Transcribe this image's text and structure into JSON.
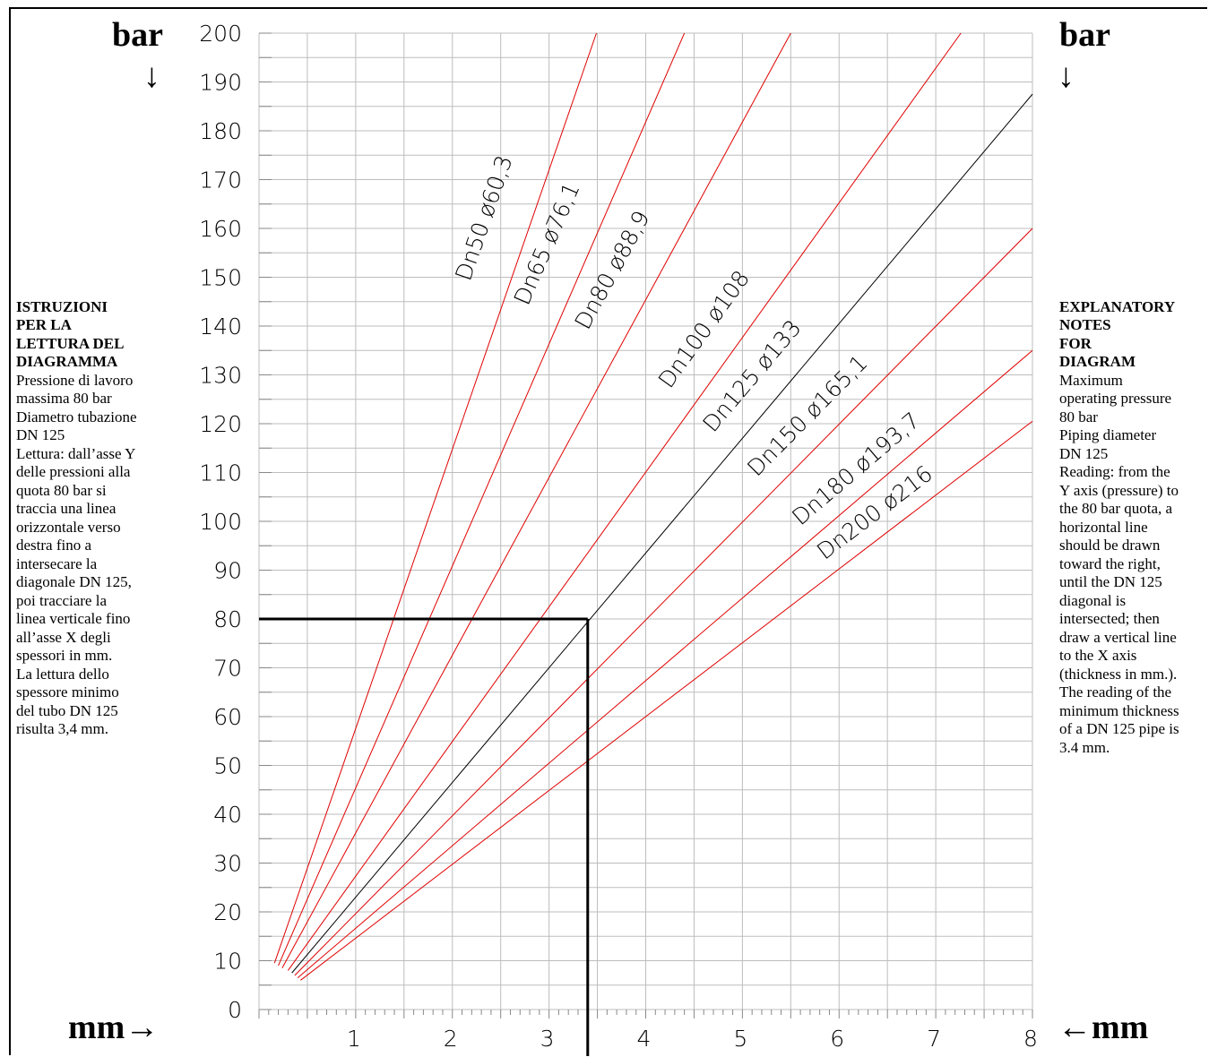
{
  "units": {
    "bar_left": "bar",
    "bar_right": "bar",
    "down_arrow_left": "↓",
    "down_arrow_right": "↓",
    "mm_left": "mm→",
    "mm_right": "←mm"
  },
  "left_notes": {
    "heading": "ISTRUZIONI\nPER LA\nLETTURA DEL\nDIAGRAMMA",
    "body": "Pressione di lavoro\nmassima 80 bar\nDiametro tubazione\nDN 125\nLettura: dall’asse Y\ndelle pressioni alla\nquota 80 bar si\ntraccia una linea\norizzontale verso\ndestra fino a\nintersecare la\ndiagonale DN 125,\npoi tracciare la\nlinea verticale fino\nall’asse  X degli\nspessori in mm.\nLa lettura dello\nspessore minimo\ndel tubo DN 125\nrisulta 3,4 mm."
  },
  "right_notes": {
    "heading": "EXPLANATORY\nNOTES\nFOR\nDIAGRAM",
    "body": "Maximum\noperating pressure\n80 bar\nPiping diameter\nDN 125\nReading: from the\nY axis (pressure) to\nthe 80 bar quota, a\nhorizontal line\nshould be drawn\ntoward the right,\nuntil the DN 125\ndiagonal is\nintersected; then\ndraw a vertical line\nto the X axis\n(thickness in mm.).\nThe reading of the\nminimum thickness\nof a DN 125 pipe is\n3.4 mm."
  },
  "chart_data": {
    "type": "line",
    "xlabel": "mm",
    "ylabel": "bar",
    "xlim": [
      0,
      8
    ],
    "ylim": [
      0,
      200
    ],
    "x_ticks": [
      "1",
      "2",
      "3",
      "4",
      "5",
      "6",
      "7",
      "8"
    ],
    "y_ticks": [
      "0",
      "10",
      "20",
      "30",
      "40",
      "50",
      "60",
      "70",
      "80",
      "90",
      "100",
      "110",
      "120",
      "130",
      "140",
      "150",
      "160",
      "170",
      "180",
      "190",
      "200"
    ],
    "grid": true,
    "series": [
      {
        "name": "Dn50  ø60,3",
        "color": "#e00000",
        "x": [
          0.16,
          3.49
        ],
        "y": [
          9.5,
          200
        ]
      },
      {
        "name": "Dn65  ø76,1",
        "color": "#e00000",
        "x": [
          0.2,
          4.4
        ],
        "y": [
          9,
          200
        ]
      },
      {
        "name": "Dn80  ø88,9",
        "color": "#e00000",
        "x": [
          0.24,
          5.5
        ],
        "y": [
          8.5,
          200
        ]
      },
      {
        "name": "Dn100  ø108",
        "color": "#e00000",
        "x": [
          0.3,
          7.26
        ],
        "y": [
          8,
          200
        ]
      },
      {
        "name": "Dn125  ø133",
        "color": "#000000",
        "x": [
          0.34,
          8
        ],
        "y": [
          7.5,
          187.5
        ]
      },
      {
        "name": "Dn150  ø165,1",
        "color": "#e00000",
        "x": [
          0.37,
          8
        ],
        "y": [
          7,
          160
        ]
      },
      {
        "name": "Dn180  ø193,7",
        "color": "#e00000",
        "x": [
          0.4,
          8
        ],
        "y": [
          6.5,
          135
        ]
      },
      {
        "name": "Dn200  ø216",
        "color": "#e00000",
        "x": [
          0.43,
          8
        ],
        "y": [
          6,
          120.5
        ]
      }
    ],
    "annotation": {
      "pressure_bar": 80,
      "thickness_mm": 3.4,
      "diameter": "DN 125"
    }
  }
}
